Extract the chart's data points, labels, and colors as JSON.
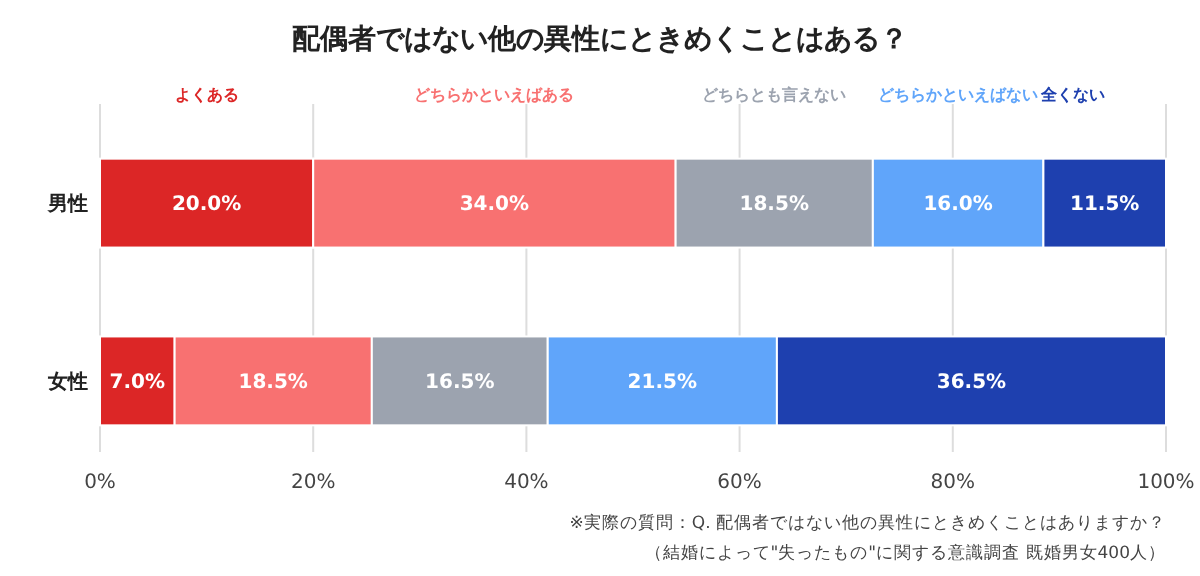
{
  "chart_data": {
    "type": "bar",
    "orientation": "horizontal",
    "stacked": true,
    "title": "配偶者ではない他の異性にときめくことはある？",
    "categories": [
      "男性",
      "女性"
    ],
    "series": [
      {
        "name": "よくある",
        "color": "#dc2626",
        "values": [
          20.0,
          7.0
        ],
        "value_labels": [
          "20.0%",
          "7.0%"
        ]
      },
      {
        "name": "どちらかといえばある",
        "color": "#f87171",
        "values": [
          34.0,
          18.5
        ],
        "value_labels": [
          "34.0%",
          "18.5%"
        ]
      },
      {
        "name": "どちらとも言えない",
        "color": "#9ca3af",
        "values": [
          18.5,
          16.5
        ],
        "value_labels": [
          "18.5%",
          "16.5%"
        ]
      },
      {
        "name": "どちらかといえばない",
        "color": "#60a5fa",
        "values": [
          16.0,
          21.5
        ],
        "value_labels": [
          "16.0%",
          "21.5%"
        ]
      },
      {
        "name": "全くない",
        "color": "#1e40af",
        "values": [
          11.5,
          36.5
        ],
        "value_labels": [
          "11.5%",
          "36.5%"
        ]
      }
    ],
    "xlim": [
      0,
      100
    ],
    "xticks": [
      {
        "value": 0,
        "label": "0%"
      },
      {
        "value": 20,
        "label": "20%"
      },
      {
        "value": 40,
        "label": "40%"
      },
      {
        "value": 60,
        "label": "60%"
      },
      {
        "value": 80,
        "label": "80%"
      },
      {
        "value": 100,
        "label": "100%"
      }
    ],
    "grid": "x",
    "legend": "top",
    "annotations": [
      "※実際の質問：Q. 配偶者ではない他の異性にときめくことはありますか？",
      "（結婚によって\"失ったもの\"に関する意識調査 既婚男女400人）"
    ]
  }
}
